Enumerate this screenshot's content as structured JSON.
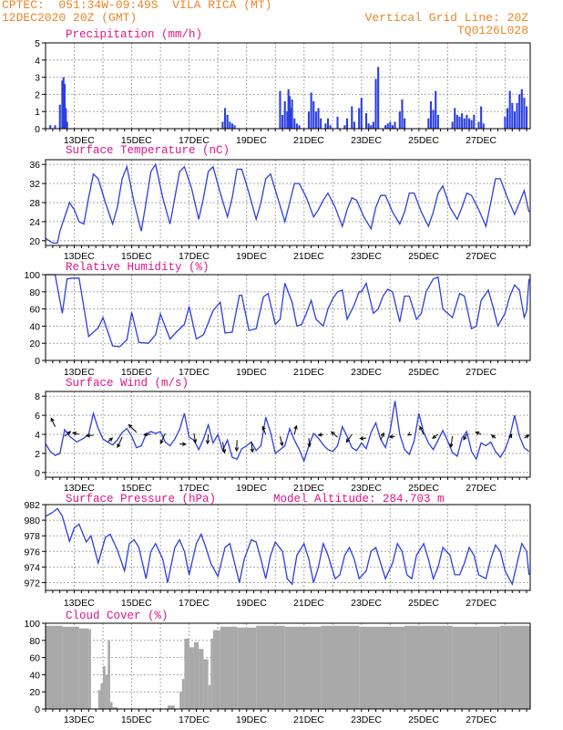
{
  "header": {
    "line1": "CPTEC:  051:34W-09:49S  VILA RICA (MT)",
    "line2": "12DEC2020 20Z (GMT)",
    "grid_note": "Vertical Grid Line: 20Z",
    "code": "TQ0126L028"
  },
  "colors": {
    "line": "#2b3fe0",
    "bar": "#2b3fe0",
    "cloud": "#a9a9a9",
    "grid": "#a6a6a6",
    "title": "#e0148c",
    "header": "#e8862a"
  },
  "date_labels": [
    "13DEC",
    "15DEC",
    "17DEC",
    "19DEC",
    "21DEC",
    "23DEC",
    "25DEC",
    "27DEC"
  ],
  "chart_data": [
    {
      "type": "bar",
      "title": "Precipitation (mm/h)",
      "ylim": [
        0,
        5
      ],
      "yticks": [
        0,
        1,
        2,
        3,
        4,
        5
      ],
      "time_unit": "hours after 12DEC 20Z",
      "hours": [
        4,
        8,
        12,
        14,
        15,
        16,
        17,
        18,
        148,
        150,
        152,
        154,
        156,
        158,
        196,
        198,
        200,
        202,
        203,
        204,
        205,
        206,
        208,
        210,
        212,
        220,
        222,
        224,
        226,
        228,
        230,
        234,
        236,
        238,
        244,
        250,
        252,
        256,
        258,
        262,
        264,
        268,
        270,
        272,
        274,
        276,
        278,
        284,
        286,
        288,
        290,
        292,
        296,
        298,
        300,
        320,
        322,
        324,
        326,
        328,
        340,
        342,
        344,
        346,
        348,
        350,
        352,
        354,
        356,
        358,
        362,
        364,
        366,
        384,
        386,
        388,
        390,
        392,
        394,
        396,
        398,
        400,
        402
      ],
      "values": [
        0.2,
        0.2,
        1.4,
        2.8,
        3.0,
        2.6,
        1.2,
        0.4,
        0.4,
        1.2,
        0.8,
        0.4,
        0.3,
        0.2,
        2.2,
        0.8,
        1.6,
        1.0,
        2.3,
        1.9,
        1.2,
        1.7,
        0.6,
        0.3,
        0.2,
        1.0,
        2.1,
        1.6,
        1.0,
        1.2,
        0.6,
        0.3,
        0.6,
        0.2,
        0.7,
        0.2,
        0.6,
        1.3,
        0.4,
        1.2,
        1.8,
        0.9,
        0.3,
        0.2,
        0.4,
        2.9,
        3.6,
        0.2,
        0.3,
        0.4,
        0.2,
        0.4,
        1.0,
        1.7,
        0.6,
        0.6,
        1.6,
        1.1,
        2.2,
        0.8,
        0.4,
        1.2,
        0.8,
        0.7,
        0.9,
        0.6,
        0.8,
        0.6,
        0.5,
        0.8,
        0.4,
        1.3,
        0.3,
        0.7,
        1.2,
        2.2,
        1.5,
        1.0,
        1.5,
        2.0,
        2.3,
        1.8,
        1.3
      ]
    },
    {
      "type": "line",
      "title": "Surface Temperature (nC)",
      "ylim": [
        19,
        37
      ],
      "yticks": [
        20,
        24,
        28,
        32,
        36
      ],
      "x": [
        0,
        6,
        10,
        12,
        20,
        24,
        28,
        32,
        36,
        40,
        44,
        50,
        56,
        60,
        64,
        68,
        74,
        80,
        84,
        88,
        92,
        98,
        104,
        108,
        112,
        116,
        122,
        128,
        132,
        136,
        140,
        146,
        152,
        156,
        160,
        164,
        170,
        176,
        180,
        184,
        188,
        194,
        200,
        204,
        208,
        212,
        218,
        224,
        228,
        232,
        236,
        242,
        248,
        252,
        256,
        260,
        266,
        272,
        276,
        280,
        284,
        290,
        296,
        300,
        304,
        308,
        314,
        320,
        324,
        328,
        332,
        338,
        344,
        348,
        352,
        356,
        362,
        368,
        372,
        376,
        380,
        386,
        392,
        396,
        400,
        404
      ],
      "values": [
        20.5,
        19.5,
        19.5,
        22,
        28,
        26.5,
        24,
        23.5,
        29,
        34,
        33,
        28,
        23.5,
        27,
        33,
        35.5,
        28,
        22,
        28,
        34.5,
        36,
        29,
        23.5,
        29,
        34.5,
        35.5,
        31,
        24.5,
        29,
        34.5,
        35.5,
        30,
        25,
        29,
        35,
        35,
        30,
        24.5,
        28,
        33,
        34,
        29,
        24,
        28,
        32,
        32,
        29,
        25,
        26.5,
        28.5,
        30,
        27,
        23,
        26.5,
        29,
        28.5,
        25,
        22.5,
        27,
        29.5,
        29.5,
        26,
        23.5,
        26,
        30,
        30,
        26,
        23,
        26,
        30,
        31.5,
        27,
        24.5,
        27,
        30,
        29.5,
        26.5,
        23,
        28,
        33,
        33,
        29,
        25.5,
        28,
        30.5,
        26
      ]
    },
    {
      "type": "line",
      "title": "Relative Humidity (%)",
      "ylim": [
        0,
        100
      ],
      "yticks": [
        0,
        20,
        40,
        60,
        80,
        100
      ],
      "x": [
        0,
        8,
        14,
        18,
        22,
        28,
        36,
        44,
        48,
        56,
        62,
        68,
        72,
        78,
        86,
        92,
        96,
        104,
        110,
        116,
        120,
        126,
        132,
        140,
        146,
        150,
        156,
        162,
        164,
        170,
        176,
        182,
        186,
        192,
        196,
        200,
        206,
        210,
        214,
        218,
        222,
        226,
        232,
        236,
        240,
        244,
        248,
        252,
        258,
        262,
        264,
        268,
        274,
        278,
        282,
        286,
        290,
        296,
        300,
        304,
        310,
        314,
        318,
        324,
        328,
        332,
        340,
        346,
        350,
        356,
        360,
        364,
        370,
        374,
        378,
        384,
        388,
        392,
        396,
        400,
        402,
        404
      ],
      "values": [
        100,
        100,
        55,
        95,
        96,
        96,
        28,
        38,
        50,
        17,
        16,
        24,
        56,
        21,
        20,
        30,
        54,
        25,
        34,
        42,
        63,
        25,
        30,
        58,
        68,
        32,
        33,
        76,
        76,
        35,
        37,
        74,
        78,
        42,
        48,
        90,
        68,
        40,
        42,
        55,
        70,
        48,
        40,
        60,
        72,
        80,
        82,
        48,
        65,
        80,
        80,
        90,
        55,
        60,
        75,
        83,
        80,
        45,
        75,
        75,
        48,
        55,
        80,
        95,
        97,
        60,
        50,
        78,
        75,
        37,
        40,
        70,
        82,
        62,
        40,
        55,
        75,
        88,
        82,
        50,
        58,
        95
      ]
    },
    {
      "type": "line",
      "title": "Surface Wind (m/s)",
      "ylim": [
        -0.5,
        8.5
      ],
      "yticks": [
        0,
        2,
        4,
        6,
        8
      ],
      "x": [
        0,
        4,
        8,
        12,
        16,
        20,
        26,
        32,
        36,
        40,
        44,
        48,
        52,
        56,
        60,
        64,
        68,
        72,
        76,
        80,
        84,
        88,
        92,
        96,
        100,
        104,
        108,
        112,
        116,
        120,
        124,
        128,
        132,
        136,
        140,
        144,
        148,
        152,
        156,
        160,
        164,
        168,
        172,
        176,
        180,
        184,
        188,
        192,
        196,
        200,
        204,
        208,
        212,
        216,
        220,
        224,
        228,
        232,
        236,
        240,
        244,
        248,
        252,
        256,
        260,
        264,
        268,
        272,
        276,
        280,
        284,
        288,
        292,
        296,
        300,
        304,
        308,
        312,
        316,
        320,
        324,
        328,
        332,
        336,
        340,
        344,
        348,
        352,
        356,
        360,
        364,
        368,
        372,
        376,
        380,
        384,
        388,
        392,
        396,
        400,
        404
      ],
      "values": [
        3,
        2.2,
        1.8,
        2,
        4.5,
        3.8,
        3.2,
        3.6,
        4,
        6.2,
        4.6,
        3.5,
        3.2,
        2.9,
        3.4,
        4.2,
        4.6,
        3.8,
        2.6,
        2.8,
        4,
        4.3,
        4.1,
        4.3,
        3.2,
        2.8,
        3.5,
        4.5,
        6.2,
        3.7,
        3.4,
        2.4,
        3.5,
        5,
        3.1,
        4,
        2.3,
        3.4,
        1.6,
        1.4,
        2.5,
        2.8,
        3.2,
        2.3,
        2.8,
        5.8,
        4.2,
        2,
        2.4,
        2.8,
        4.6,
        3.4,
        2.4,
        1.2,
        2.8,
        4.1,
        3.6,
        2.9,
        2.4,
        2.2,
        2.8,
        4.8,
        3.8,
        2.6,
        2.3,
        3.1,
        2.5,
        4.2,
        5.2,
        3.5,
        2.6,
        4.4,
        7.5,
        4,
        2.4,
        1.9,
        3.3,
        6.2,
        4.2,
        3.1,
        2.4,
        3.4,
        4.4,
        3.3,
        2.1,
        1.7,
        3.6,
        4.3,
        2.2,
        1.4,
        3.1,
        2.8,
        3.2,
        2.2,
        1.6,
        2.4,
        3.8,
        6,
        3.8,
        2.6,
        2.2
      ],
      "arrows": {
        "x": [
          8,
          16,
          28,
          40,
          52,
          64,
          76,
          88,
          100,
          112,
          124,
          136,
          148,
          160,
          172,
          184,
          196,
          208,
          220,
          232,
          244,
          256,
          268,
          280,
          292,
          304,
          316,
          328,
          340,
          352,
          364,
          376,
          388,
          400
        ],
        "y": [
          4.8,
          3.8,
          4,
          3.9,
          3.2,
          3.7,
          4.2,
          4,
          4.1,
          3,
          4.1,
          4,
          3.2,
          3.4,
          3.2,
          4,
          3.8,
          4,
          3.6,
          4,
          3.7,
          4,
          3.6,
          3.4,
          3.8,
          4,
          4,
          4,
          3.8,
          4,
          4,
          3.6,
          3.6,
          3.6
        ],
        "u": [
          -1,
          1.5,
          -1.6,
          -1.8,
          1.2,
          -1.2,
          -2,
          -1.8,
          -1.2,
          1.6,
          0.4,
          -0.2,
          0.5,
          -0.1,
          0.3,
          -0.8,
          0.6,
          0.5,
          0.2,
          -1.2,
          -1.6,
          -1.4,
          -1.6,
          0.8,
          -1.4,
          -0.3,
          -1,
          -1.4,
          -0.4,
          -0.8,
          -1.4,
          -1,
          0.4,
          1.2
        ],
        "v": [
          2.2,
          1.2,
          0.4,
          -0.1,
          1,
          -2.6,
          2,
          -0.1,
          -2.6,
          -0.1,
          -2.4,
          -2.4,
          -2.8,
          -2.8,
          -2.6,
          2,
          -2.4,
          2.2,
          -2.2,
          -0.2,
          1.4,
          -2,
          -0.1,
          1.8,
          -0.2,
          -0.2,
          2,
          -1,
          -2.8,
          -1.4,
          0.6,
          0.8,
          1,
          0.8
        ]
      }
    },
    {
      "type": "line",
      "title": "Surface Pressure (hPa)",
      "annotation": "Model Altitude: 284.703 m",
      "ylim": [
        971,
        982
      ],
      "yticks": [
        972,
        974,
        976,
        978,
        980,
        982
      ],
      "x": [
        0,
        6,
        10,
        14,
        20,
        24,
        28,
        34,
        38,
        44,
        50,
        54,
        60,
        66,
        70,
        74,
        78,
        84,
        88,
        92,
        98,
        102,
        108,
        112,
        116,
        120,
        126,
        130,
        134,
        138,
        144,
        150,
        154,
        158,
        162,
        166,
        172,
        176,
        180,
        184,
        188,
        192,
        198,
        202,
        206,
        210,
        216,
        220,
        224,
        228,
        232,
        236,
        242,
        246,
        250,
        254,
        258,
        262,
        268,
        272,
        276,
        280,
        284,
        290,
        294,
        298,
        302,
        306,
        310,
        316,
        320,
        324,
        328,
        332,
        338,
        342,
        346,
        350,
        354,
        358,
        362,
        368,
        372,
        376,
        380,
        384,
        390,
        394,
        398,
        402,
        404
      ],
      "values": [
        980.5,
        981,
        981.5,
        980.5,
        977.3,
        979,
        979.5,
        977.2,
        978,
        974.5,
        977.8,
        978.2,
        976.2,
        973.5,
        977,
        977.5,
        976.5,
        972.5,
        976,
        977,
        975,
        972,
        976.5,
        977.5,
        976,
        973,
        977,
        978.2,
        976.5,
        974.5,
        972.8,
        976.5,
        977,
        974.5,
        972,
        975,
        977.5,
        977.2,
        975,
        972.5,
        975.5,
        977.2,
        976,
        972.5,
        971.8,
        975.5,
        977,
        975,
        972,
        974,
        977,
        975.5,
        972.5,
        973,
        975.5,
        976.5,
        975,
        972.5,
        973.5,
        976,
        976.5,
        974.5,
        972.5,
        974.5,
        977,
        976,
        973,
        972.5,
        975.5,
        977,
        975,
        972.5,
        974,
        976.5,
        975.5,
        973,
        973,
        974.5,
        976.5,
        975.5,
        973,
        972.5,
        975,
        976.8,
        976,
        973.5,
        971.8,
        974.5,
        977,
        976,
        973
      ],
      "xlabel": "",
      "ylabel": ""
    },
    {
      "type": "bar",
      "title": "Cloud Cover (%)",
      "ylim": [
        0,
        100
      ],
      "yticks": [
        0,
        20,
        40,
        60,
        80,
        100
      ],
      "segments": [
        {
          "from": 0,
          "to": 14,
          "value": 97
        },
        {
          "from": 14,
          "to": 28,
          "value": 96
        },
        {
          "from": 28,
          "to": 36,
          "value": 94
        },
        {
          "from": 36,
          "to": 38,
          "value": 93
        },
        {
          "from": 38,
          "to": 44,
          "value": 0
        },
        {
          "from": 44,
          "to": 46,
          "value": 22
        },
        {
          "from": 46,
          "to": 48,
          "value": 30
        },
        {
          "from": 48,
          "to": 50,
          "value": 50
        },
        {
          "from": 50,
          "to": 52,
          "value": 40
        },
        {
          "from": 52,
          "to": 54,
          "value": 80
        },
        {
          "from": 54,
          "to": 56,
          "value": 8
        },
        {
          "from": 56,
          "to": 60,
          "value": 2
        },
        {
          "from": 60,
          "to": 102,
          "value": 0
        },
        {
          "from": 102,
          "to": 108,
          "value": 4
        },
        {
          "from": 108,
          "to": 112,
          "value": 0
        },
        {
          "from": 112,
          "to": 114,
          "value": 20
        },
        {
          "from": 114,
          "to": 116,
          "value": 35
        },
        {
          "from": 116,
          "to": 120,
          "value": 82
        },
        {
          "from": 120,
          "to": 124,
          "value": 72
        },
        {
          "from": 124,
          "to": 128,
          "value": 78
        },
        {
          "from": 128,
          "to": 132,
          "value": 70
        },
        {
          "from": 132,
          "to": 136,
          "value": 58
        },
        {
          "from": 136,
          "to": 138,
          "value": 28
        },
        {
          "from": 138,
          "to": 140,
          "value": 82
        },
        {
          "from": 140,
          "to": 146,
          "value": 92
        },
        {
          "from": 146,
          "to": 160,
          "value": 96
        },
        {
          "from": 160,
          "to": 176,
          "value": 95
        },
        {
          "from": 176,
          "to": 200,
          "value": 97
        },
        {
          "from": 200,
          "to": 230,
          "value": 96
        },
        {
          "from": 230,
          "to": 262,
          "value": 97
        },
        {
          "from": 262,
          "to": 300,
          "value": 96
        },
        {
          "from": 300,
          "to": 340,
          "value": 97
        },
        {
          "from": 340,
          "to": 380,
          "value": 96
        },
        {
          "from": 380,
          "to": 405,
          "value": 97
        }
      ]
    }
  ]
}
